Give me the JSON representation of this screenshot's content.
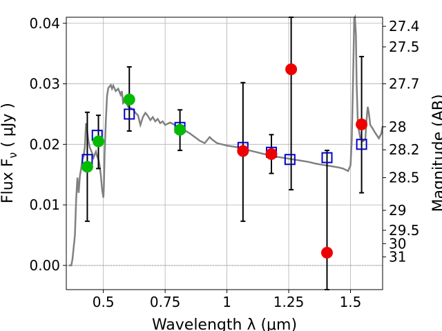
{
  "chart_data": {
    "type": "scatter",
    "xlabel": "Wavelength  λ (μm)",
    "ylabel": "Flux  F",
    "ylabel_sub": "ν",
    "ylabel_tail": " ( μJy )",
    "y2label": "Magnitude (AB)",
    "xlim": [
      0.35,
      1.63
    ],
    "ylim": [
      -0.004,
      0.041
    ],
    "x_ticks": [
      0.5,
      0.75,
      1,
      1.25,
      1.5
    ],
    "x_tick_labels": [
      "0.5",
      "0.75",
      "1",
      "1.25",
      "1.5"
    ],
    "y_ticks": [
      0.0,
      0.01,
      0.02,
      0.03,
      0.04
    ],
    "y_tick_labels": [
      "0.00",
      "0.01",
      "0.02",
      "0.03",
      "0.04"
    ],
    "y2_ticks": [
      {
        "mag": "27.4",
        "flux": 0.0395
      },
      {
        "mag": "27.5",
        "flux": 0.0361
      },
      {
        "mag": "27.7",
        "flux": 0.03
      },
      {
        "mag": "28",
        "flux": 0.0229
      },
      {
        "mag": "28.2",
        "flux": 0.0191
      },
      {
        "mag": "28.5",
        "flux": 0.0145
      },
      {
        "mag": "29",
        "flux": 0.0091
      },
      {
        "mag": "29.5",
        "flux": 0.0058
      },
      {
        "mag": "30",
        "flux": 0.0036
      },
      {
        "mag": "31",
        "flux": 0.0014
      }
    ],
    "grid": true,
    "colors": {
      "spectrum": "#808080",
      "model_box": "#0000cc",
      "green_points": "#00bb00",
      "red_points": "#ee0000",
      "errorbar": "#000000"
    },
    "spectrum": [
      [
        0.36,
        0.0
      ],
      [
        0.37,
        0.0
      ],
      [
        0.375,
        0.001
      ],
      [
        0.385,
        0.005
      ],
      [
        0.39,
        0.011
      ],
      [
        0.395,
        0.0145
      ],
      [
        0.4,
        0.012
      ],
      [
        0.405,
        0.0148
      ],
      [
        0.41,
        0.016
      ],
      [
        0.415,
        0.0175
      ],
      [
        0.42,
        0.018
      ],
      [
        0.425,
        0.0195
      ],
      [
        0.43,
        0.0235
      ],
      [
        0.435,
        0.022
      ],
      [
        0.44,
        0.0205
      ],
      [
        0.445,
        0.0195
      ],
      [
        0.45,
        0.019
      ],
      [
        0.455,
        0.0185
      ],
      [
        0.46,
        0.0178
      ],
      [
        0.465,
        0.0183
      ],
      [
        0.47,
        0.0188
      ],
      [
        0.475,
        0.018
      ],
      [
        0.48,
        0.0175
      ],
      [
        0.485,
        0.0165
      ],
      [
        0.49,
        0.0148
      ],
      [
        0.495,
        0.0125
      ],
      [
        0.5,
        0.0112
      ],
      [
        0.502,
        0.013
      ],
      [
        0.505,
        0.0185
      ],
      [
        0.51,
        0.024
      ],
      [
        0.515,
        0.028
      ],
      [
        0.52,
        0.0293
      ],
      [
        0.53,
        0.0298
      ],
      [
        0.535,
        0.0292
      ],
      [
        0.54,
        0.0297
      ],
      [
        0.55,
        0.0288
      ],
      [
        0.56,
        0.0292
      ],
      [
        0.57,
        0.0282
      ],
      [
        0.575,
        0.0288
      ],
      [
        0.58,
        0.0268
      ],
      [
        0.59,
        0.0272
      ],
      [
        0.6,
        0.0262
      ],
      [
        0.62,
        0.0258
      ],
      [
        0.63,
        0.0252
      ],
      [
        0.64,
        0.0248
      ],
      [
        0.65,
        0.0232
      ],
      [
        0.66,
        0.0245
      ],
      [
        0.67,
        0.0252
      ],
      [
        0.68,
        0.0247
      ],
      [
        0.69,
        0.024
      ],
      [
        0.7,
        0.0245
      ],
      [
        0.71,
        0.0238
      ],
      [
        0.72,
        0.0242
      ],
      [
        0.73,
        0.0235
      ],
      [
        0.74,
        0.0238
      ],
      [
        0.75,
        0.0232
      ],
      [
        0.77,
        0.0236
      ],
      [
        0.79,
        0.0232
      ],
      [
        0.8,
        0.0228
      ],
      [
        0.81,
        0.0222
      ],
      [
        0.83,
        0.0223
      ],
      [
        0.85,
        0.0218
      ],
      [
        0.87,
        0.0212
      ],
      [
        0.89,
        0.0206
      ],
      [
        0.91,
        0.0202
      ],
      [
        0.93,
        0.0212
      ],
      [
        0.94,
        0.0208
      ],
      [
        0.96,
        0.0202
      ],
      [
        0.98,
        0.02
      ],
      [
        1.0,
        0.0198
      ],
      [
        1.03,
        0.0196
      ],
      [
        1.06,
        0.0194
      ],
      [
        1.09,
        0.019
      ],
      [
        1.12,
        0.0187
      ],
      [
        1.15,
        0.0184
      ],
      [
        1.18,
        0.0181
      ],
      [
        1.21,
        0.0179
      ],
      [
        1.24,
        0.0177
      ],
      [
        1.27,
        0.0175
      ],
      [
        1.3,
        0.0173
      ],
      [
        1.33,
        0.0171
      ],
      [
        1.36,
        0.0168
      ],
      [
        1.39,
        0.0166
      ],
      [
        1.42,
        0.0164
      ],
      [
        1.45,
        0.0162
      ],
      [
        1.47,
        0.016
      ],
      [
        1.48,
        0.0158
      ],
      [
        1.49,
        0.0156
      ],
      [
        1.5,
        0.0165
      ],
      [
        1.505,
        0.0205
      ],
      [
        1.51,
        0.03
      ],
      [
        1.515,
        0.0408
      ],
      [
        1.518,
        0.041
      ],
      [
        1.522,
        0.038
      ],
      [
        1.525,
        0.03
      ],
      [
        1.53,
        0.0232
      ],
      [
        1.54,
        0.021
      ],
      [
        1.55,
        0.0205
      ],
      [
        1.56,
        0.0208
      ],
      [
        1.565,
        0.024
      ],
      [
        1.57,
        0.0262
      ],
      [
        1.575,
        0.025
      ],
      [
        1.58,
        0.0232
      ],
      [
        1.59,
        0.0226
      ],
      [
        1.6,
        0.0219
      ],
      [
        1.615,
        0.021
      ],
      [
        1.625,
        0.0218
      ],
      [
        1.63,
        0.023
      ]
    ],
    "model_boxes": [
      {
        "x": 0.435,
        "y": 0.0175
      },
      {
        "x": 0.475,
        "y": 0.0215
      },
      {
        "x": 0.605,
        "y": 0.025
      },
      {
        "x": 0.81,
        "y": 0.0228
      },
      {
        "x": 1.065,
        "y": 0.0195
      },
      {
        "x": 1.18,
        "y": 0.0187
      },
      {
        "x": 1.255,
        "y": 0.0175
      },
      {
        "x": 1.405,
        "y": 0.0178
      },
      {
        "x": 1.545,
        "y": 0.02
      }
    ],
    "green_points": [
      {
        "x": 0.435,
        "y": 0.0163,
        "ylo": 0.0073,
        "yhi": 0.0253
      },
      {
        "x": 0.48,
        "y": 0.0205,
        "ylo": 0.016,
        "yhi": 0.0248
      },
      {
        "x": 0.605,
        "y": 0.0274,
        "ylo": 0.0222,
        "yhi": 0.0328
      },
      {
        "x": 0.81,
        "y": 0.0224,
        "ylo": 0.019,
        "yhi": 0.0257
      }
    ],
    "red_points": [
      {
        "x": 1.065,
        "y": 0.0189,
        "ylo": 0.0073,
        "yhi": 0.0302
      },
      {
        "x": 1.18,
        "y": 0.0184,
        "ylo": 0.0152,
        "yhi": 0.0216
      },
      {
        "x": 1.26,
        "y": 0.0324,
        "ylo": 0.0125,
        "yhi": 0.041
      },
      {
        "x": 1.405,
        "y": 0.0021,
        "ylo": -0.004,
        "yhi": 0.019
      },
      {
        "x": 1.545,
        "y": 0.0233,
        "ylo": 0.012,
        "yhi": 0.0345
      }
    ]
  }
}
